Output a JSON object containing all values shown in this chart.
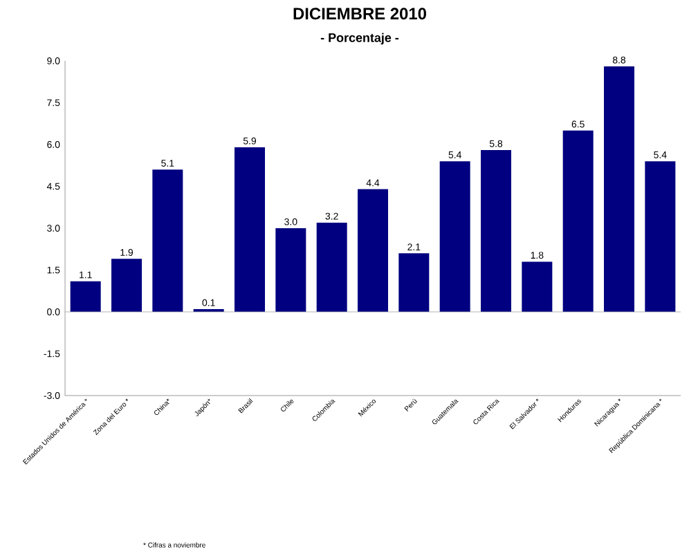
{
  "chart_data": {
    "type": "bar",
    "title": "DICIEMBRE 2010",
    "subtitle": "- Porcentaje -",
    "categories": [
      "Estados Unidos de América *",
      "Zona del Euro *",
      "China*",
      "Japón*",
      "Brasil",
      "Chile",
      "Colombia",
      "México",
      "Perú",
      "Guatemala",
      "Costa Rica",
      "El Salvador *",
      "Honduras",
      "Nicaragua *",
      "República Dominicana *"
    ],
    "values": [
      1.1,
      1.9,
      5.1,
      0.1,
      5.9,
      3.0,
      3.2,
      4.4,
      2.1,
      5.4,
      5.8,
      1.8,
      6.5,
      8.8,
      5.4
    ],
    "color": "#000080",
    "value_labels": [
      "1.1",
      "1.9",
      "5.1",
      "0.1",
      "5.9",
      "3.0",
      "3.2",
      "4.4",
      "2.1",
      "5.4",
      "5.8",
      "1.8",
      "6.5",
      "8.8",
      "5.4"
    ],
    "ref_lines": [
      {
        "axis": "y",
        "value": 0,
        "color": "#a0a0a0"
      }
    ],
    "ylim": [
      -3,
      9
    ],
    "yticks": [
      {
        "value": 9,
        "label": "9.0"
      },
      {
        "value": 7.5,
        "label": "7.5"
      },
      {
        "value": 6,
        "label": "6.0"
      },
      {
        "value": 4.5,
        "label": "4.5"
      },
      {
        "value": 3,
        "label": "3.0"
      },
      {
        "value": 1.5,
        "label": "1.5"
      },
      {
        "value": 0,
        "label": "0.0"
      },
      {
        "value": -1.5,
        "label": "-1.5"
      },
      {
        "value": -3,
        "label": "-3.0"
      }
    ],
    "annotations": [
      "* Cifras a noviembre"
    ]
  }
}
